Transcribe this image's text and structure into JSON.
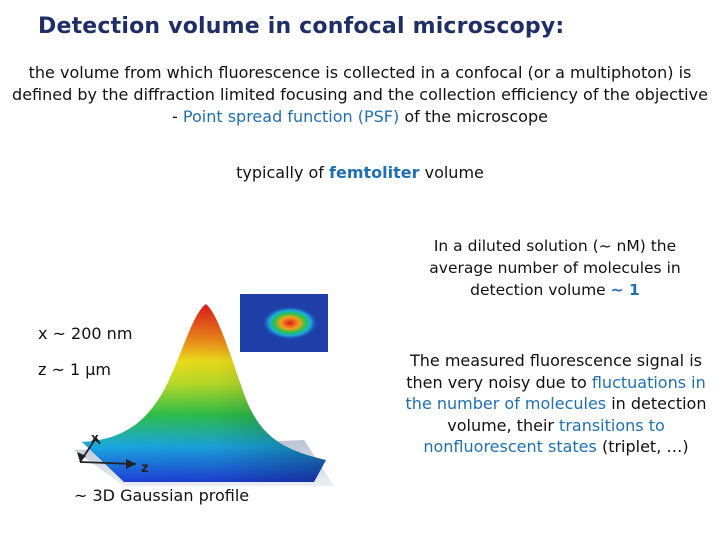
{
  "title": "Detection volume in confocal microscopy:",
  "intro": {
    "text_before": "the volume from which fluorescence is collected in a confocal (or a multiphoton) is defined by the diffraction limited focusing and the collection efficiency of the objective - ",
    "highlight": "Point spread function (PSF)",
    "text_after": " of the microscope"
  },
  "typical": {
    "before": "typically of ",
    "highlight": "femtoliter",
    "after": " volume"
  },
  "dilute": {
    "before": "In a diluted solution (~ nM) the average number of molecules in detection volume ",
    "highlight": "~ 1"
  },
  "measured": {
    "part1": "The measured fluorescence signal is then very noisy due to ",
    "highlight1": "fluctuations in the number of molecules",
    "part2": " in detection volume, their ",
    "highlight2": "transitions to nonfluorescent states",
    "part3": " (triplet, …)"
  },
  "figure": {
    "x_size": "x ~ 200 nm",
    "z_size": "z ~ 1 μm",
    "axis_x": "x",
    "axis_z": "z",
    "caption": "~ 3D Gaussian profile"
  },
  "colors": {
    "title": "#1f2f66",
    "accent": "#1f6fb5",
    "inset_background": "#1f3fa8"
  }
}
